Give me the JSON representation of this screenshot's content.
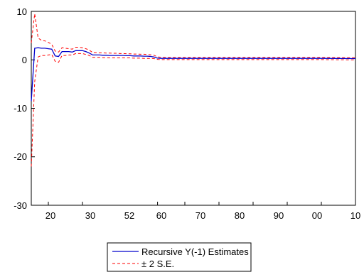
{
  "chart_data": {
    "type": "line",
    "xlabel": "",
    "ylabel": "",
    "ylim": [
      -30,
      10
    ],
    "y_ticks": [
      "10",
      "0",
      "-10",
      "-20",
      "-30"
    ],
    "y_tick_values": [
      10,
      0,
      -10,
      -20,
      -30
    ],
    "x_ticks": [
      "20",
      "30",
      "52",
      "60",
      "70",
      "80",
      "90",
      "00",
      "10"
    ],
    "x_tick_values": [
      1920,
      1930,
      1952,
      1960,
      1970,
      1980,
      1990,
      2000,
      2010
    ],
    "xlim": [
      1915,
      2010
    ],
    "grid": false,
    "legend_position": "bottom-center",
    "series": [
      {
        "name": "Recursive Y(-1) Estimates",
        "color": "#0000cc",
        "style": "solid",
        "x": [
          1915,
          1916,
          1917,
          1918,
          1919,
          1920,
          1921,
          1922,
          1923,
          1924,
          1925,
          1926,
          1927,
          1928,
          1929,
          1930,
          1931,
          1932,
          1933,
          1934,
          1935,
          1936,
          1937,
          1938,
          1939,
          1940,
          1941,
          1942,
          1943,
          1944,
          1945,
          1946,
          1947,
          1948,
          1949,
          1950,
          1951,
          1952,
          1953,
          1954,
          1955,
          1960,
          1970,
          1980,
          1990,
          2000,
          2010
        ],
        "y": [
          -8.5,
          2.4,
          2.5,
          2.4,
          2.4,
          2.3,
          2.2,
          0.8,
          0.7,
          1.7,
          1.7,
          1.7,
          1.6,
          1.9,
          1.9,
          1.9,
          1.7,
          1.4,
          1.0,
          1.0,
          1.0,
          0.95,
          0.95,
          0.9,
          0.9,
          0.9,
          0.9,
          0.9,
          0.85,
          0.85,
          0.8,
          0.8,
          0.8,
          0.75,
          0.75,
          0.7,
          0.6,
          0.35,
          0.3,
          0.3,
          0.3,
          0.3,
          0.3,
          0.3,
          0.3,
          0.3,
          0.25
        ]
      },
      {
        "name": "± 2 S.E.",
        "color": "#ff0000",
        "style": "dashed",
        "x": [
          1915,
          1916,
          1917,
          1918,
          1919,
          1920,
          1921,
          1922,
          1923,
          1924,
          1925,
          1926,
          1927,
          1928,
          1929,
          1930,
          1931,
          1932,
          1933,
          1934,
          1935,
          1936,
          1937,
          1938,
          1939,
          1940,
          1941,
          1942,
          1943,
          1944,
          1945,
          1946,
          1947,
          1948,
          1949,
          1950,
          1951,
          1952,
          1953,
          1954,
          1955,
          1960,
          1970,
          1980,
          1990,
          2000,
          2010
        ],
        "y": [
          3.5,
          9.5,
          4.5,
          4.0,
          3.9,
          3.6,
          3.2,
          1.8,
          1.6,
          2.5,
          2.4,
          2.3,
          2.2,
          2.6,
          2.6,
          2.5,
          2.3,
          2.0,
          1.5,
          1.5,
          1.45,
          1.45,
          1.4,
          1.4,
          1.35,
          1.35,
          1.3,
          1.3,
          1.25,
          1.25,
          1.2,
          1.2,
          1.15,
          1.15,
          1.1,
          1.05,
          0.95,
          0.6,
          0.55,
          0.55,
          0.5,
          0.5,
          0.5,
          0.5,
          0.5,
          0.5,
          0.45
        ]
      },
      {
        "name": "",
        "color": "#ff0000",
        "style": "dashed",
        "x": [
          1915,
          1916,
          1917,
          1918,
          1919,
          1920,
          1921,
          1922,
          1923,
          1924,
          1925,
          1926,
          1927,
          1928,
          1929,
          1930,
          1931,
          1932,
          1933,
          1934,
          1935,
          1936,
          1937,
          1938,
          1939,
          1940,
          1941,
          1942,
          1943,
          1944,
          1945,
          1946,
          1947,
          1948,
          1949,
          1950,
          1951,
          1952,
          1953,
          1954,
          1955,
          1960,
          1970,
          1980,
          1990,
          2000,
          2010
        ],
        "y": [
          -22.0,
          -4.5,
          0.6,
          0.9,
          0.9,
          1.0,
          1.1,
          -0.3,
          -0.5,
          0.9,
          0.9,
          1.0,
          1.0,
          1.3,
          1.3,
          1.3,
          1.1,
          0.9,
          0.5,
          0.5,
          0.5,
          0.45,
          0.45,
          0.4,
          0.4,
          0.4,
          0.4,
          0.4,
          0.4,
          0.4,
          0.35,
          0.35,
          0.35,
          0.3,
          0.3,
          0.3,
          0.25,
          0.1,
          0.05,
          0.05,
          0.05,
          0.05,
          0.05,
          0.05,
          0.05,
          0.05,
          0.0
        ]
      }
    ]
  }
}
